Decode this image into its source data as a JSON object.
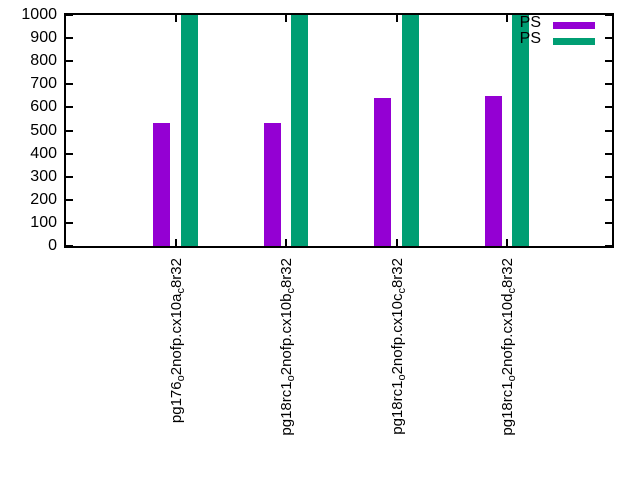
{
  "chart_data": {
    "type": "bar",
    "title": "",
    "xlabel": "",
    "ylabel": "",
    "categories": [
      "pg176o2nofp.cx10ac8r32",
      "pg18rc1o2nofp.cx10bc8r32",
      "pg18rc1o2nofp.cx10cc8r32",
      "pg18rc1o2nofp.cx10dc8r32"
    ],
    "categories_rich": [
      {
        "p1": "pg176",
        "s1": "o",
        "p2": "2nofp.cx10a",
        "s2": "c",
        "p3": "8r32"
      },
      {
        "p1": "pg18rc1",
        "s1": "o",
        "p2": "2nofp.cx10b",
        "s2": "c",
        "p3": "8r32"
      },
      {
        "p1": "pg18rc1",
        "s1": "o",
        "p2": "2nofp.cx10c",
        "s2": "c",
        "p3": "8r32"
      },
      {
        "p1": "pg18rc1",
        "s1": "o",
        "p2": "2nofp.cx10d",
        "s2": "c",
        "p3": "8r32"
      }
    ],
    "series": [
      {
        "name": "PS",
        "color": "#9400d3",
        "values": [
          532,
          532,
          640,
          648
        ]
      },
      {
        "name": "PS",
        "color": "#009e73",
        "values": [
          1000,
          1000,
          1000,
          1000
        ]
      }
    ],
    "ylim": [
      0,
      1000
    ],
    "yticks": [
      0,
      100,
      200,
      300,
      400,
      500,
      600,
      700,
      800,
      900,
      1000
    ],
    "grid": false,
    "legend_position": "top-right"
  },
  "colors": {
    "background": "#ffffff",
    "axis": "#000000",
    "text": "#000000",
    "series1": "#9400d3",
    "series2": "#009e73"
  }
}
